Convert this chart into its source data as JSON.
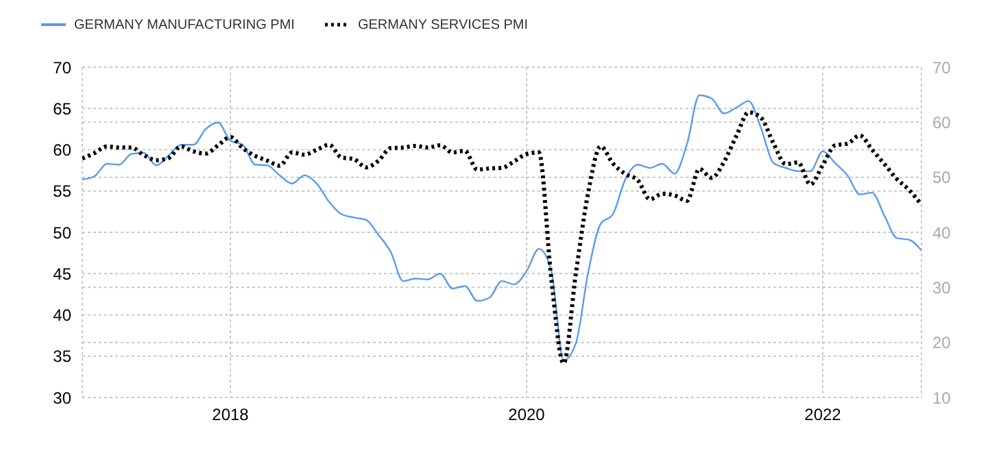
{
  "chart_data": {
    "type": "line",
    "x": [
      "2017-01",
      "2017-02",
      "2017-03",
      "2017-04",
      "2017-05",
      "2017-06",
      "2017-07",
      "2017-08",
      "2017-09",
      "2017-10",
      "2017-11",
      "2017-12",
      "2018-01",
      "2018-02",
      "2018-03",
      "2018-04",
      "2018-05",
      "2018-06",
      "2018-07",
      "2018-08",
      "2018-09",
      "2018-10",
      "2018-11",
      "2018-12",
      "2019-01",
      "2019-02",
      "2019-03",
      "2019-04",
      "2019-05",
      "2019-06",
      "2019-07",
      "2019-08",
      "2019-09",
      "2019-10",
      "2019-11",
      "2019-12",
      "2020-01",
      "2020-02",
      "2020-03",
      "2020-04",
      "2020-05",
      "2020-06",
      "2020-07",
      "2020-08",
      "2020-09",
      "2020-10",
      "2020-11",
      "2020-12",
      "2021-01",
      "2021-02",
      "2021-03",
      "2021-04",
      "2021-05",
      "2021-06",
      "2021-07",
      "2021-08",
      "2021-09",
      "2021-10",
      "2021-11",
      "2021-12",
      "2022-01",
      "2022-02",
      "2022-03",
      "2022-04",
      "2022-05",
      "2022-06",
      "2022-07",
      "2022-08",
      "2022-09"
    ],
    "series": [
      {
        "name": "GERMANY MANUFACTURING PMI",
        "color": "#5b9bef",
        "line_style": "solid",
        "values": [
          56.4,
          56.8,
          58.3,
          58.2,
          59.5,
          59.6,
          58.1,
          59.3,
          60.6,
          60.6,
          62.5,
          63.3,
          61.1,
          60.6,
          58.2,
          58.1,
          56.9,
          55.9,
          56.9,
          55.9,
          53.7,
          52.2,
          51.8,
          51.5,
          49.7,
          47.6,
          44.1,
          44.4,
          44.3,
          45.0,
          43.2,
          43.5,
          41.7,
          42.1,
          44.1,
          43.7,
          45.3,
          48.0,
          45.4,
          34.5,
          36.6,
          45.2,
          51.0,
          52.2,
          56.4,
          58.2,
          57.8,
          58.3,
          57.1,
          60.7,
          66.6,
          66.2,
          64.4,
          65.1,
          65.9,
          62.6,
          58.4,
          57.8,
          57.4,
          57.4,
          59.8,
          58.4,
          56.9,
          54.6,
          54.8,
          52.0,
          49.3,
          49.1,
          47.8
        ]
      },
      {
        "name": "GERMANY SERVICES PMI",
        "color": "#000000",
        "line_style": "dotted",
        "axis": "y2",
        "values": [
          53.4,
          54.4,
          55.6,
          55.4,
          55.4,
          54.0,
          53.1,
          53.5,
          55.6,
          54.7,
          54.3,
          55.8,
          57.3,
          55.3,
          53.9,
          53.0,
          52.1,
          54.5,
          54.1,
          55.0,
          55.9,
          53.6,
          53.3,
          51.8,
          53.0,
          55.3,
          55.4,
          55.7,
          55.4,
          55.8,
          54.5,
          54.8,
          51.4,
          51.6,
          51.7,
          52.9,
          54.2,
          54.5,
          31.7,
          16.2,
          32.6,
          47.3,
          55.6,
          52.5,
          50.6,
          49.5,
          46.0,
          47.0,
          46.7,
          45.7,
          51.5,
          49.9,
          52.8,
          57.5,
          61.8,
          60.8,
          56.2,
          52.4,
          52.7,
          48.7,
          52.2,
          55.8,
          56.1,
          57.6,
          55.0,
          52.4,
          49.7,
          47.7,
          45.0
        ]
      }
    ],
    "xlim": [
      "2017-01",
      "2022-09"
    ],
    "xticks": [
      "2018",
      "2020",
      "2022"
    ],
    "ylim": [
      30,
      70
    ],
    "yticks": [
      30,
      35,
      40,
      45,
      50,
      55,
      60,
      65,
      70
    ],
    "y2lim": [
      10,
      70
    ],
    "y2ticks": [
      10,
      20,
      30,
      40,
      50,
      60,
      70
    ],
    "grid": true,
    "legend": "top left"
  }
}
